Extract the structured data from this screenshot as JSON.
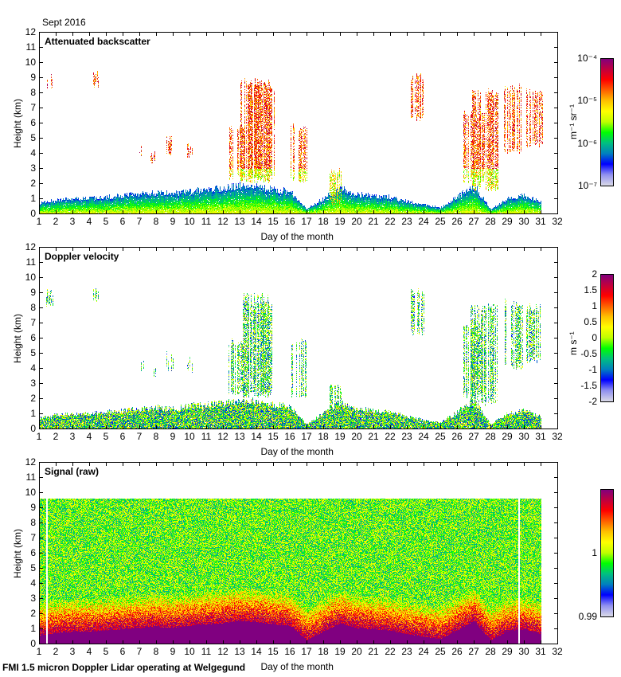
{
  "header": {
    "date_label": "Sept 2016"
  },
  "footer": {
    "instrument_label": "FMI 1.5 micron Doppler Lidar operating at Welgegund"
  },
  "chart_data": [
    {
      "type": "heatmap",
      "title": "Attenuated backscatter",
      "xlabel": "Day of the month",
      "ylabel": "Height (km)",
      "xlim": [
        1,
        32
      ],
      "ylim": [
        0,
        12
      ],
      "xticks": [
        "1",
        "2",
        "3",
        "4",
        "5",
        "6",
        "7",
        "8",
        "9",
        "10",
        "11",
        "12",
        "13",
        "14",
        "15",
        "16",
        "17",
        "18",
        "19",
        "20",
        "21",
        "22",
        "23",
        "24",
        "25",
        "26",
        "27",
        "28",
        "29",
        "30",
        "31",
        "32"
      ],
      "yticks": [
        "0",
        "1",
        "2",
        "3",
        "4",
        "5",
        "6",
        "7",
        "8",
        "9",
        "10",
        "11",
        "12"
      ],
      "colorbar": {
        "unit_label": "m⁻¹ sr⁻¹",
        "scale": "log",
        "range": [
          1e-07,
          0.0001
        ],
        "ticks": [
          "10⁻⁴",
          "10⁻⁵",
          "10⁻⁶",
          "10⁻⁷"
        ]
      },
      "boundary_layer_top_km": [
        0.7,
        0.9,
        1.0,
        1.0,
        1.1,
        1.2,
        1.3,
        1.4,
        1.3,
        1.5,
        1.6,
        1.7,
        1.9,
        1.8,
        1.6,
        1.5,
        0.3,
        1.0,
        1.7,
        1.3,
        1.2,
        1.1,
        0.8,
        0.6,
        0.4,
        1.1,
        1.9,
        0.3,
        1.0,
        1.2,
        0.8
      ],
      "cloud_layers": [
        {
          "day": 1.6,
          "base_km": 8.0,
          "top_km": 9.4
        },
        {
          "day": 4.4,
          "base_km": 8.3,
          "top_km": 9.5
        },
        {
          "day": 7.1,
          "base_km": 3.8,
          "top_km": 4.6
        },
        {
          "day": 7.8,
          "base_km": 3.3,
          "top_km": 4.2
        },
        {
          "day": 8.8,
          "base_km": 3.8,
          "top_km": 5.2
        },
        {
          "day": 10.0,
          "base_km": 3.6,
          "top_km": 4.8
        },
        {
          "day": 12.8,
          "base_km": 2.2,
          "top_km": 6.0
        },
        {
          "day": 13.9,
          "base_km": 2.0,
          "top_km": 9.0
        },
        {
          "day": 14.3,
          "base_km": 2.2,
          "top_km": 8.5
        },
        {
          "day": 16.5,
          "base_km": 2.0,
          "top_km": 6.0
        },
        {
          "day": 18.7,
          "base_km": 0.5,
          "top_km": 3.1
        },
        {
          "day": 23.6,
          "base_km": 6.1,
          "top_km": 9.4
        },
        {
          "day": 27.0,
          "base_km": 2.0,
          "top_km": 7.0
        },
        {
          "day": 27.6,
          "base_km": 1.5,
          "top_km": 8.3
        },
        {
          "day": 29.4,
          "base_km": 3.9,
          "top_km": 8.6
        },
        {
          "day": 30.6,
          "base_km": 4.3,
          "top_km": 8.3
        }
      ]
    },
    {
      "type": "heatmap",
      "title": "Doppler velocity",
      "xlabel": "Day of the month",
      "ylabel": "Height (km)",
      "xlim": [
        1,
        32
      ],
      "ylim": [
        0,
        12
      ],
      "xticks": [
        "1",
        "2",
        "3",
        "4",
        "5",
        "6",
        "7",
        "8",
        "9",
        "10",
        "11",
        "12",
        "13",
        "14",
        "15",
        "16",
        "17",
        "18",
        "19",
        "20",
        "21",
        "22",
        "23",
        "24",
        "25",
        "26",
        "27",
        "28",
        "29",
        "30",
        "31",
        "32"
      ],
      "yticks": [
        "0",
        "1",
        "2",
        "3",
        "4",
        "5",
        "6",
        "7",
        "8",
        "9",
        "10",
        "11",
        "12"
      ],
      "colorbar": {
        "unit_label": "m s⁻¹",
        "scale": "linear",
        "range": [
          -2,
          2
        ],
        "ticks": [
          "2",
          "1.5",
          "1",
          "0.5",
          "0",
          "-0.5",
          "-1",
          "-1.5",
          "-2"
        ]
      }
    },
    {
      "type": "heatmap",
      "title": "Signal (raw)",
      "xlabel": "Day of the month",
      "ylabel": "Height (km)",
      "xlim": [
        1,
        32
      ],
      "ylim": [
        0,
        12
      ],
      "xticks": [
        "1",
        "2",
        "3",
        "4",
        "5",
        "6",
        "7",
        "8",
        "9",
        "10",
        "11",
        "12",
        "13",
        "14",
        "15",
        "16",
        "17",
        "18",
        "19",
        "20",
        "21",
        "22",
        "23",
        "24",
        "25",
        "26",
        "27",
        "28",
        "29",
        "30",
        "31",
        "32"
      ],
      "yticks": [
        "0",
        "1",
        "2",
        "3",
        "4",
        "5",
        "6",
        "7",
        "8",
        "9",
        "10",
        "11",
        "12"
      ],
      "signal_top_km": 9.6,
      "data_gaps_day": [
        1.45,
        29.7
      ],
      "colorbar": {
        "unit_label": "",
        "scale": "linear",
        "range": [
          0.99,
          1.01
        ],
        "ticks": [
          "1",
          "0.99"
        ]
      }
    }
  ],
  "colors": {
    "colormap": [
      "#d8d8e8",
      "#9090f0",
      "#0000ff",
      "#0080c0",
      "#00c080",
      "#00ff00",
      "#c0ff00",
      "#ffff00",
      "#ffc000",
      "#ff6000",
      "#ff0000",
      "#c00040",
      "#800080"
    ]
  }
}
